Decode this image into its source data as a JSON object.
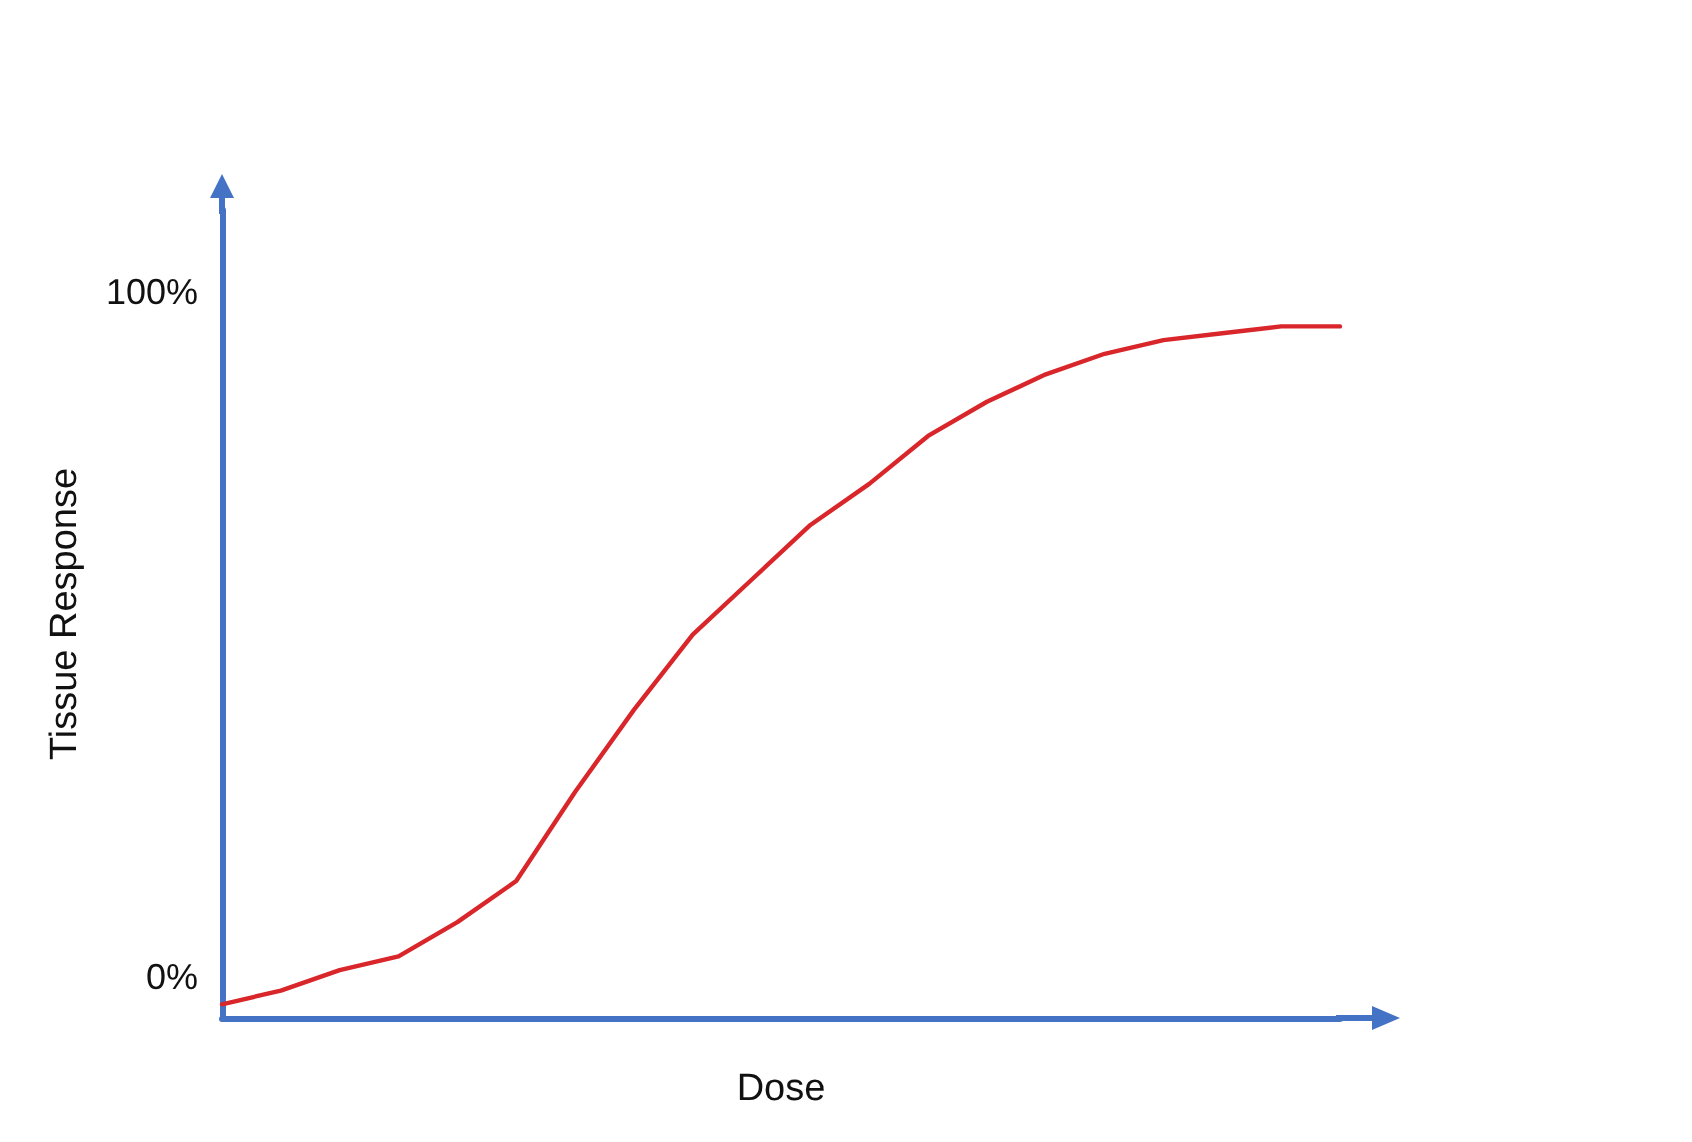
{
  "chart_data": {
    "type": "line",
    "xlabel": "Dose",
    "ylabel": "Tissue Response",
    "categories": [
      null,
      null,
      null,
      null,
      null,
      null,
      null,
      null,
      null,
      null,
      null,
      null,
      null,
      null,
      null,
      null,
      null,
      null,
      null,
      null
    ],
    "series": [
      {
        "color": "#d9262a",
        "values": [
          -4,
          -2,
          1,
          3,
          8,
          14,
          27,
          39,
          50,
          58,
          66,
          72,
          79,
          84,
          88,
          91,
          93,
          94,
          95,
          95
        ]
      }
    ],
    "ylim": [
      -6,
      112
    ],
    "yticks": [
      {
        "value": 0,
        "label": "0%"
      },
      {
        "value": 100,
        "label": "100%"
      }
    ],
    "grid": false,
    "marker": "none",
    "line_style": "solid"
  }
}
